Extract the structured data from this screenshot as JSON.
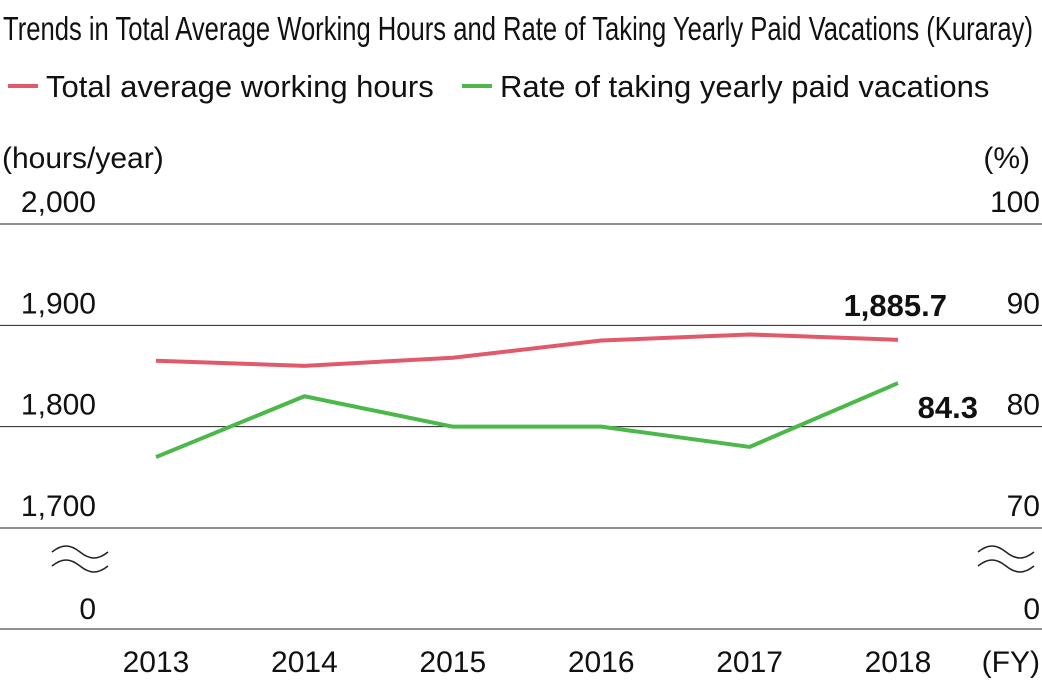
{
  "chart_data": {
    "type": "line",
    "title": "Trends in Total Average Working Hours and Rate of Taking Yearly Paid Vacations (Kuraray)",
    "categories": [
      "2013",
      "2014",
      "2015",
      "2016",
      "2017",
      "2018"
    ],
    "x_unit": "(FY)",
    "y_left": {
      "label": "(hours/year)",
      "ylim": [
        1700,
        2000
      ],
      "ticks": [
        "2,000",
        "1,900",
        "1,800",
        "1,700"
      ],
      "tick_values": [
        2000,
        1900,
        1800,
        1700
      ],
      "zero_label": "0"
    },
    "y_right": {
      "label": "(%)",
      "ylim": [
        70,
        100
      ],
      "ticks": [
        "100",
        "90",
        "80",
        "70"
      ],
      "tick_values": [
        100,
        90,
        80,
        70
      ],
      "zero_label": "0"
    },
    "series": [
      {
        "name": "Total average working hours",
        "axis": "left",
        "color": "#e05a6c",
        "values": [
          1865,
          1860,
          1868,
          1885,
          1891,
          1885.7
        ],
        "end_label": "1,885.7"
      },
      {
        "name": "Rate of taking yearly paid vacations",
        "axis": "right",
        "color": "#4cb84a",
        "values": [
          77,
          83,
          80,
          80,
          78,
          84.3
        ],
        "end_label": "84.3"
      }
    ],
    "grid": true,
    "legend": "top"
  }
}
